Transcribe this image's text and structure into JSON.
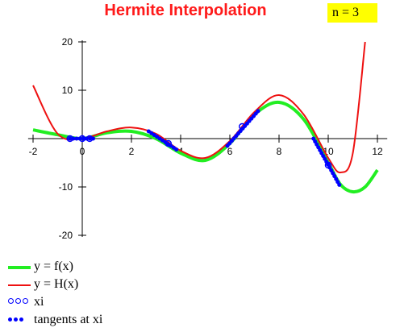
{
  "title": "Hermite Interpolation",
  "n_label": "n = 3",
  "legend": {
    "f": "y = f(x)",
    "h": "y = H(x)",
    "xi": "xi",
    "tangents": "tangents at xi"
  },
  "colors": {
    "title": "#ff1a1a",
    "n_box": "#ffff00",
    "f": "#22ee22",
    "h": "#ee1111",
    "points": "#0000ff"
  },
  "chart_data": {
    "type": "line",
    "title": "Hermite Interpolation",
    "xlim": [
      -2.2,
      12.4
    ],
    "ylim": [
      -20,
      20
    ],
    "x_ticks": [
      -2,
      0,
      2,
      4,
      6,
      8,
      10,
      12
    ],
    "y_ticks": [
      20,
      10,
      -10,
      -20
    ],
    "series": [
      {
        "name": "y = f(x)",
        "x": [
          -2,
          -1,
          0,
          1,
          2,
          3,
          4,
          5,
          6,
          7,
          8,
          9,
          10,
          10.5,
          11,
          11.5,
          12
        ],
        "y": [
          1.8,
          0.8,
          0,
          1.2,
          1.5,
          0,
          -3,
          -4.5,
          -1,
          5,
          7.5,
          4,
          -5,
          -9.5,
          -11,
          -10,
          -6.5
        ]
      },
      {
        "name": "y = H(x)",
        "x": [
          -2,
          -1,
          0,
          1,
          2,
          3,
          4,
          5,
          6,
          7,
          8,
          9,
          10,
          10.5,
          11,
          11.5
        ],
        "y": [
          11,
          1,
          0,
          1.5,
          2.3,
          1,
          -2.5,
          -4,
          -0.5,
          5.5,
          9,
          5,
          -4,
          -7,
          -3,
          20
        ]
      }
    ],
    "points_xi": [
      {
        "x": -0.5,
        "y": 0
      },
      {
        "x": 0,
        "y": 0
      },
      {
        "x": 0.3,
        "y": 0
      },
      {
        "x": 3.5,
        "y": -1
      },
      {
        "x": 6.5,
        "y": 2.5
      },
      {
        "x": 10,
        "y": -5.5
      }
    ],
    "tangents": [
      {
        "x": [
          -0.5,
          0.5
        ],
        "y": [
          0,
          0
        ]
      },
      {
        "x": [
          2.7,
          3.9
        ],
        "y": [
          1.5,
          -2.5
        ]
      },
      {
        "x": [
          5.9,
          7.2
        ],
        "y": [
          -1.5,
          6
        ]
      },
      {
        "x": [
          9.4,
          10.5
        ],
        "y": [
          0,
          -10
        ]
      }
    ],
    "grid": false,
    "legend_position": "bottom-left"
  }
}
